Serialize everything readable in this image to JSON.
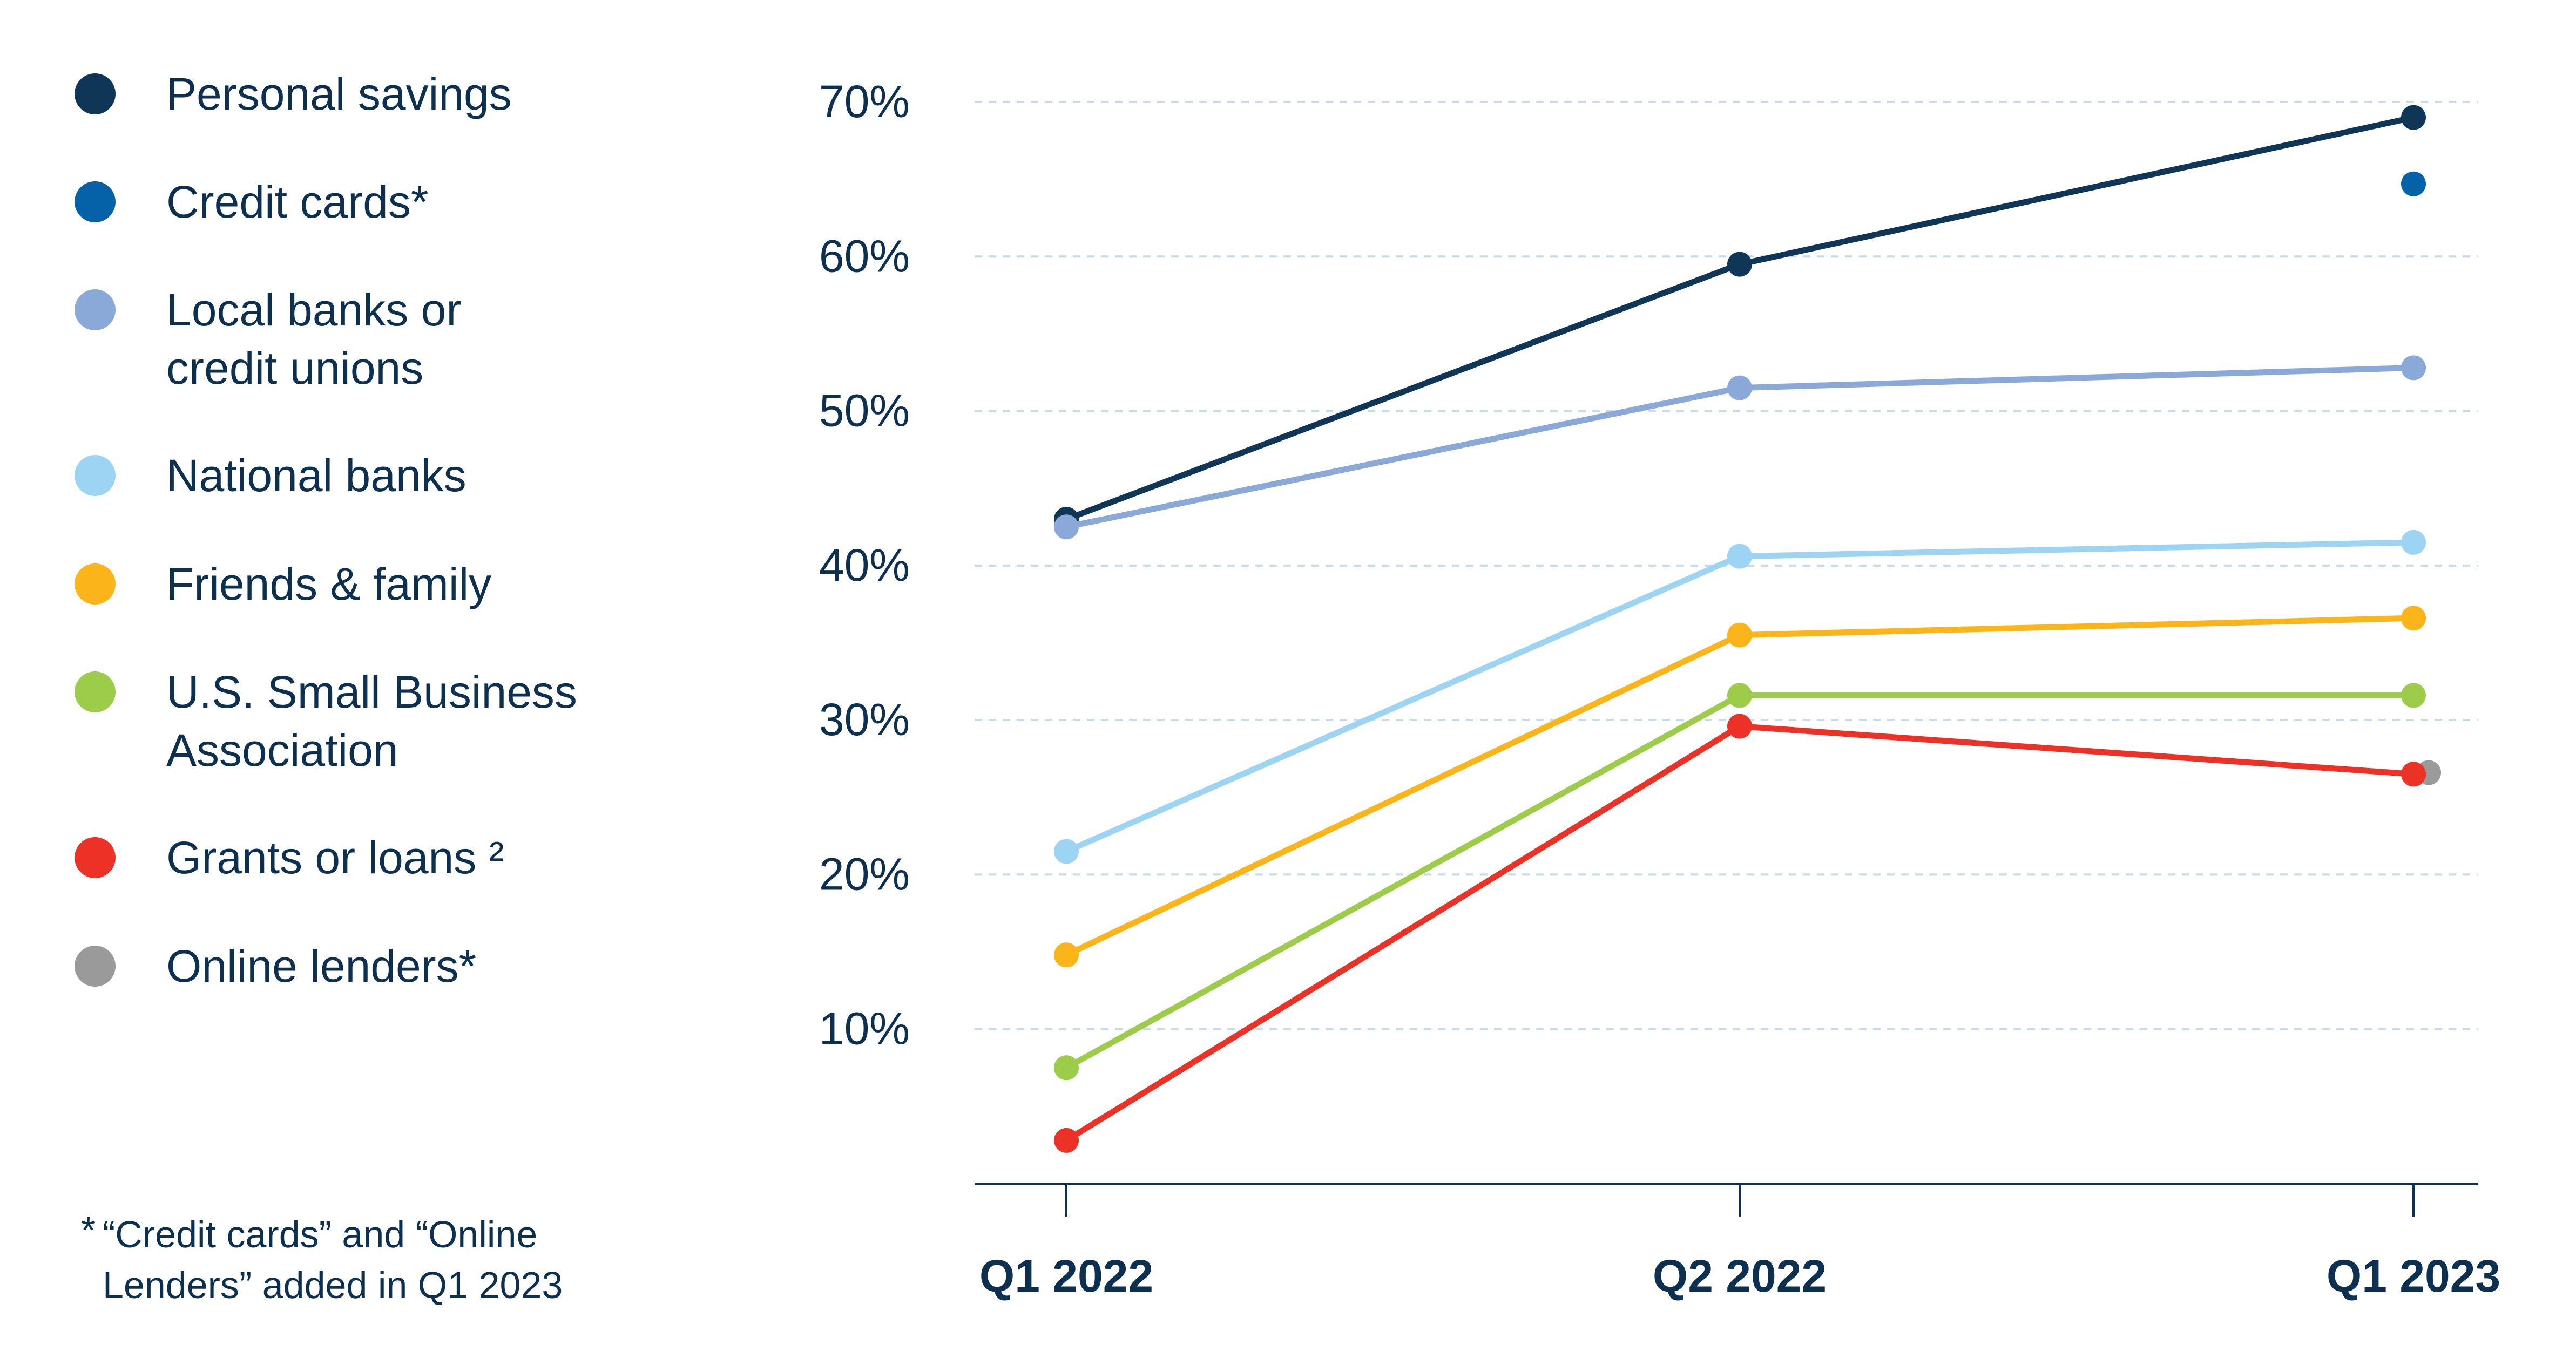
{
  "chart_data": {
    "type": "line",
    "title": "",
    "xlabel": "",
    "ylabel": "",
    "categories": [
      "Q1 2022",
      "Q2 2022",
      "Q1 2023"
    ],
    "yticks": [
      "10%",
      "20%",
      "30%",
      "40%",
      "50%",
      "60%",
      "70%"
    ],
    "ylim": [
      0,
      70
    ],
    "grid": "horizontal dashed",
    "legend_position": "left",
    "series": [
      {
        "name": "Personal savings",
        "color": "#0f3657",
        "values": [
          43,
          59.5,
          69
        ]
      },
      {
        "name": "Credit cards*",
        "color": "#0662a8",
        "values": [
          null,
          null,
          64.7
        ]
      },
      {
        "name": "Local banks or\ncredit unions",
        "color": "#8aa9d8",
        "values": [
          42.5,
          51.5,
          52.8
        ]
      },
      {
        "name": "National banks",
        "color": "#9ed4f3",
        "values": [
          21.5,
          40.6,
          41.5
        ]
      },
      {
        "name": "Friends & family",
        "color": "#fbb41a",
        "values": [
          14.8,
          35.5,
          36.6
        ]
      },
      {
        "name": "U.S. Small Business\nAssociation",
        "color": "#9ccc4a",
        "values": [
          7.5,
          31.6,
          31.6
        ]
      },
      {
        "name": "Grants or loans ²",
        "color": "#ec3127",
        "values": [
          2.8,
          29.6,
          26.5
        ]
      },
      {
        "name": "Online lenders*",
        "color": "#9a9a9a",
        "values": [
          null,
          null,
          26.6
        ]
      }
    ]
  },
  "footnote": {
    "star": "*",
    "text": "“Credit cards” and “Online\nLenders” added in Q1 2023"
  }
}
